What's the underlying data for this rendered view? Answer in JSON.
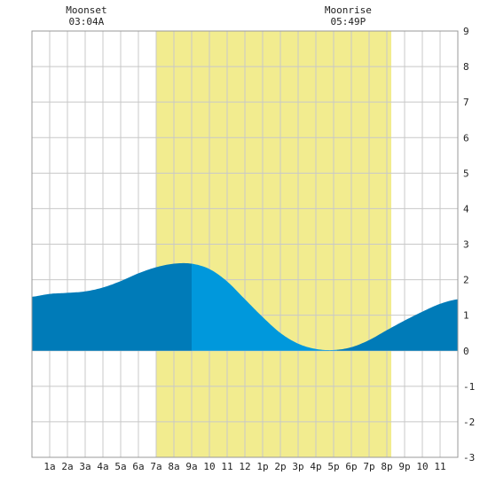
{
  "chart_data": {
    "type": "area",
    "title": "",
    "xlabel": "",
    "ylabel": "",
    "x_range_hours": [
      0,
      24
    ],
    "ylim": [
      -3,
      9
    ],
    "y_ticks": [
      -3,
      -2,
      -1,
      0,
      1,
      2,
      3,
      4,
      5,
      6,
      7,
      8,
      9
    ],
    "x_tick_hours": [
      1,
      2,
      3,
      4,
      5,
      6,
      7,
      8,
      9,
      10,
      11,
      12,
      13,
      14,
      15,
      16,
      17,
      18,
      19,
      20,
      21,
      22,
      23
    ],
    "x_tick_labels": [
      "1a",
      "2a",
      "3a",
      "4a",
      "5a",
      "6a",
      "7a",
      "8a",
      "9a",
      "10",
      "11",
      "12",
      "1p",
      "2p",
      "3p",
      "4p",
      "5p",
      "6p",
      "7p",
      "8p",
      "9p",
      "10",
      "11"
    ],
    "grid": true,
    "daylight": {
      "start_hour": 7.0,
      "end_hour": 20.25
    },
    "moon_events": [
      {
        "label": "Moonset",
        "time": "03:04A",
        "hour": 3.07
      },
      {
        "label": "Moonrise",
        "time": "05:49P",
        "hour": 17.82
      }
    ],
    "tide_series": {
      "x": [
        0,
        1,
        2,
        3,
        4,
        5,
        6,
        7,
        8,
        9,
        10,
        11,
        12,
        13,
        14,
        15,
        16,
        17,
        18,
        19,
        20,
        21,
        22,
        23,
        24
      ],
      "y": [
        1.52,
        1.6,
        1.63,
        1.67,
        1.78,
        1.96,
        2.18,
        2.35,
        2.45,
        2.45,
        2.3,
        1.95,
        1.45,
        0.95,
        0.5,
        0.2,
        0.05,
        0.02,
        0.1,
        0.3,
        0.58,
        0.85,
        1.1,
        1.32,
        1.45
      ]
    },
    "colors": {
      "daylight": "#f2ec8f",
      "grid": "#c8c8c8",
      "tide_dark": "#007bb8",
      "tide_light": "#0098dc",
      "axis_text": "#222222"
    },
    "highlight_segment_hours": [
      9.0,
      17.2
    ]
  }
}
